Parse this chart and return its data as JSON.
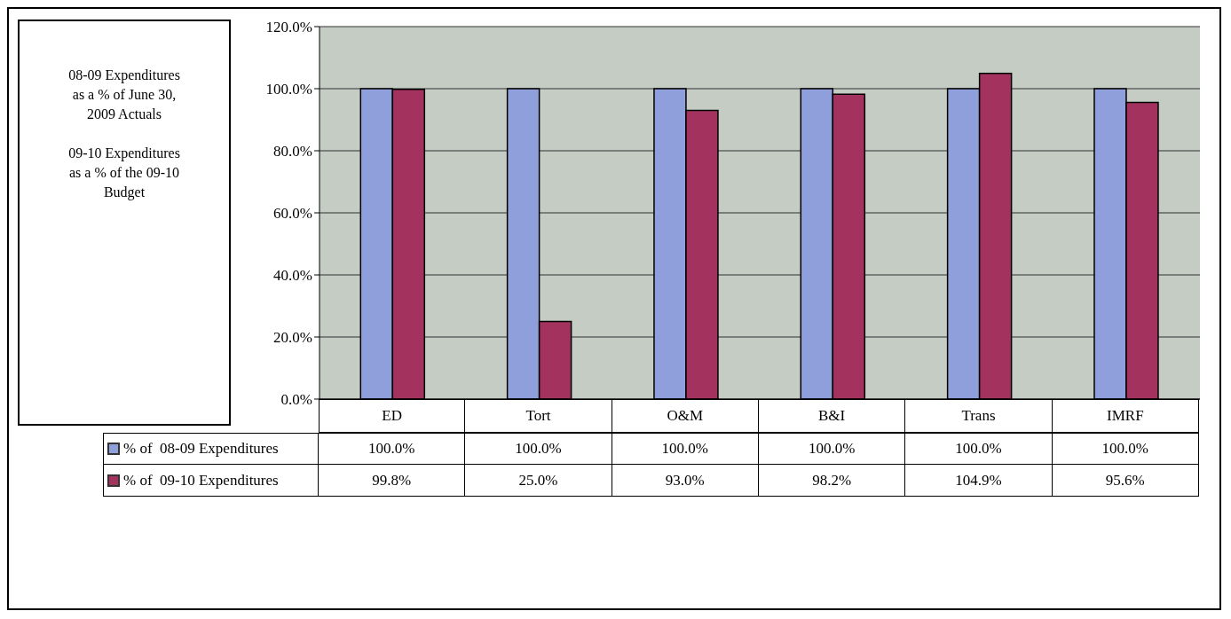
{
  "chart_data": {
    "type": "bar",
    "categories": [
      "ED",
      "Tort",
      "O&M",
      "B&I",
      "Trans",
      "IMRF"
    ],
    "series": [
      {
        "name": "% of  08-09 Expenditures",
        "color": "#8e9fdc",
        "values": [
          100.0,
          100.0,
          100.0,
          100.0,
          100.0,
          100.0
        ],
        "value_labels": [
          "100.0%",
          "100.0%",
          "100.0%",
          "100.0%",
          "100.0%",
          "100.0%"
        ]
      },
      {
        "name": "% of  09-10 Expenditures",
        "color": "#a3325e",
        "values": [
          99.8,
          25.0,
          93.0,
          98.2,
          104.9,
          95.6
        ],
        "value_labels": [
          "99.8%",
          "25.0%",
          "93.0%",
          "98.2%",
          "104.9%",
          "95.6%"
        ]
      }
    ],
    "ylim": [
      0,
      120
    ],
    "yticks": [
      {
        "value": 0,
        "label": "0.0%"
      },
      {
        "value": 20,
        "label": "20.0%"
      },
      {
        "value": 40,
        "label": "40.0%"
      },
      {
        "value": 60,
        "label": "60.0%"
      },
      {
        "value": 80,
        "label": "80.0%"
      },
      {
        "value": 100,
        "label": "100.0%"
      },
      {
        "value": 120,
        "label": "120.0%"
      }
    ],
    "grid": "y",
    "legend": "bottom left",
    "annotations": [
      "08-09 Expenditures as a  % of June 30, 2009 Actuals",
      "09-10 Expenditures as a % of the 09-10 Budget"
    ]
  }
}
